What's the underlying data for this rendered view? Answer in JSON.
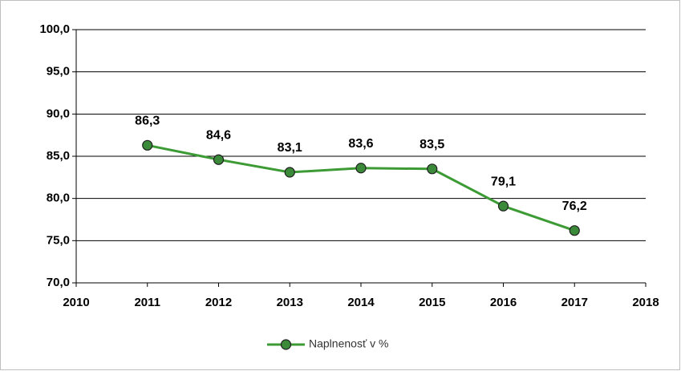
{
  "chart_data": {
    "type": "line",
    "x": [
      2011,
      2012,
      2013,
      2014,
      2015,
      2016,
      2017
    ],
    "series": [
      {
        "name": "Naplnenosť v %",
        "color": "#3d9b35",
        "marker_color": "#3a8a3a",
        "values": [
          86.3,
          84.6,
          83.1,
          83.6,
          83.5,
          79.1,
          76.2
        ],
        "value_labels": [
          "86,3",
          "84,6",
          "83,1",
          "83,6",
          "83,5",
          "79,1",
          "76,2"
        ]
      }
    ],
    "xlim": [
      2010,
      2018
    ],
    "xticks": [
      2010,
      2011,
      2012,
      2013,
      2014,
      2015,
      2016,
      2017,
      2018
    ],
    "ylim": [
      70,
      100
    ],
    "yticks": [
      {
        "value": 70,
        "label": "70,0"
      },
      {
        "value": 75,
        "label": "75,0"
      },
      {
        "value": 80,
        "label": "80,0"
      },
      {
        "value": 85,
        "label": "85,0"
      },
      {
        "value": 90,
        "label": "90,0"
      },
      {
        "value": 95,
        "label": "95,0"
      },
      {
        "value": 100,
        "label": "100,0"
      }
    ],
    "grid": true,
    "legend": "bottom"
  }
}
